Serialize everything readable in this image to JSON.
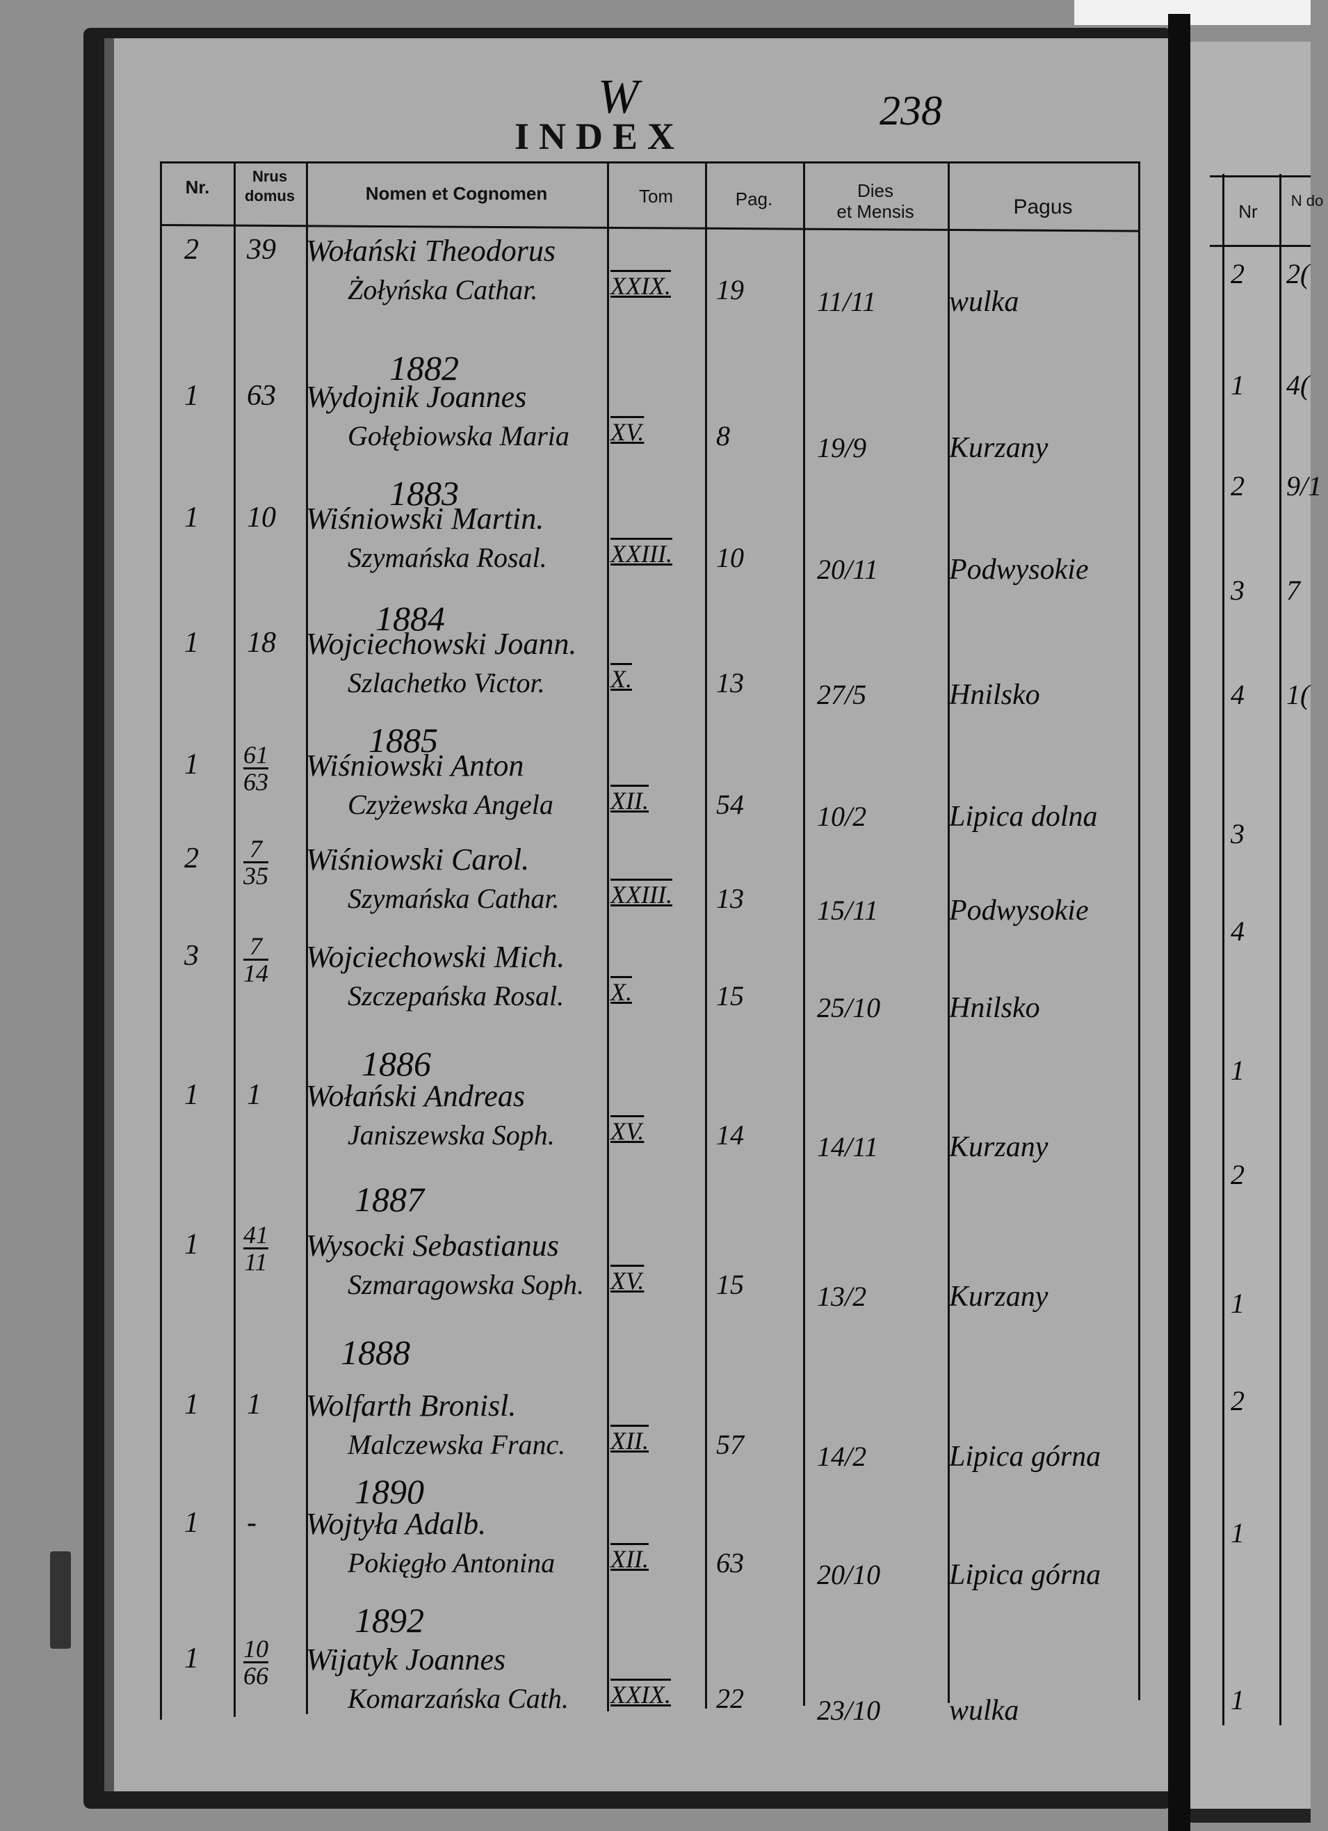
{
  "page": {
    "letter": "W",
    "page_number": "238",
    "title": "INDEX"
  },
  "table": {
    "headers": {
      "nr": "Nr.",
      "nrus_domus_1": "Nrus",
      "nrus_domus_2": "domus",
      "nomen": "Nomen et Cognomen",
      "tom": "Tom",
      "pag": "Pag.",
      "dies_1": "Dies",
      "dies_2": "et Mensis",
      "pagus": "Pagus"
    },
    "years": [
      "1882",
      "1883",
      "1884",
      "1885",
      "1886",
      "1887",
      "1888",
      "1890",
      "1892"
    ],
    "entries": [
      {
        "nr": "2",
        "domus": "39",
        "husband": "Wołański Theodorus",
        "wife": "Żołyńska Cathar.",
        "tom": "XXIX.",
        "pag": "19",
        "date": "11/11",
        "pagus": "wulka"
      },
      {
        "nr": "1",
        "domus": "63",
        "husband": "Wydojnik Joannes",
        "wife": "Gołębiowska Maria",
        "tom": "XV.",
        "pag": "8",
        "date": "19/9",
        "pagus": "Kurzany"
      },
      {
        "nr": "1",
        "domus": "10",
        "husband": "Wiśniowski Martin.",
        "wife": "Szymańska Rosal.",
        "tom": "XXIII.",
        "pag": "10",
        "date": "20/11",
        "pagus": "Podwysokie"
      },
      {
        "nr": "1",
        "domus": "18",
        "husband": "Wojciechowski Joann.",
        "wife": "Szlachetko Victor.",
        "tom": "X.",
        "pag": "13",
        "date": "27/5",
        "pagus": "Hnilsko"
      },
      {
        "nr": "1",
        "domus_num": "61",
        "domus_den": "63",
        "husband": "Wiśniowski Anton",
        "wife": "Czyżewska Angela",
        "tom": "XII.",
        "pag": "54",
        "date": "10/2",
        "pagus": "Lipica dolna"
      },
      {
        "nr": "2",
        "domus_num": "7",
        "domus_den": "35",
        "husband": "Wiśniowski Carol.",
        "wife": "Szymańska Cathar.",
        "tom": "XXIII.",
        "pag": "13",
        "date": "15/11",
        "pagus": "Podwysokie"
      },
      {
        "nr": "3",
        "domus_num": "7",
        "domus_den": "14",
        "husband": "Wojciechowski Mich.",
        "wife": "Szczepańska Rosal.",
        "tom": "X.",
        "pag": "15",
        "date": "25/10",
        "pagus": "Hnilsko"
      },
      {
        "nr": "1",
        "domus": "1",
        "husband": "Wołański Andreas",
        "wife": "Janiszewska Soph.",
        "tom": "XV.",
        "pag": "14",
        "date": "14/11",
        "pagus": "Kurzany"
      },
      {
        "nr": "1",
        "domus_num": "41",
        "domus_den": "11",
        "husband": "Wysocki Sebastianus",
        "wife": "Szmaragowska Soph.",
        "tom": "XV.",
        "pag": "15",
        "date": "13/2",
        "pagus": "Kurzany"
      },
      {
        "nr": "1",
        "domus": "1",
        "husband": "Wolfarth Bronisl.",
        "wife": "Malczewska Franc.",
        "tom": "XII.",
        "pag": "57",
        "date": "14/2",
        "pagus": "Lipica górna"
      },
      {
        "nr": "1",
        "domus": "-",
        "husband": "Wojtyła Adalb.",
        "wife": "Pokięgło Antonina",
        "tom": "XII.",
        "pag": "63",
        "date": "20/10",
        "pagus": "Lipica górna"
      },
      {
        "nr": "1",
        "domus_num": "10",
        "domus_den": "66",
        "husband": "Wijatyk Joannes",
        "wife": "Komarzańska Cath.",
        "tom": "XXIX.",
        "pag": "22",
        "date": "23/10",
        "pagus": "wulka"
      }
    ]
  },
  "right_page": {
    "headers": {
      "nr": "Nr",
      "domus": "N do"
    },
    "nr_values": [
      "2",
      "1",
      "2",
      "3",
      "4",
      "3",
      "4",
      "1",
      "2",
      "1",
      "2",
      "1",
      "1"
    ],
    "domus_fragments": [
      "2(",
      "4(",
      "9/1",
      "7",
      "1("
    ]
  }
}
